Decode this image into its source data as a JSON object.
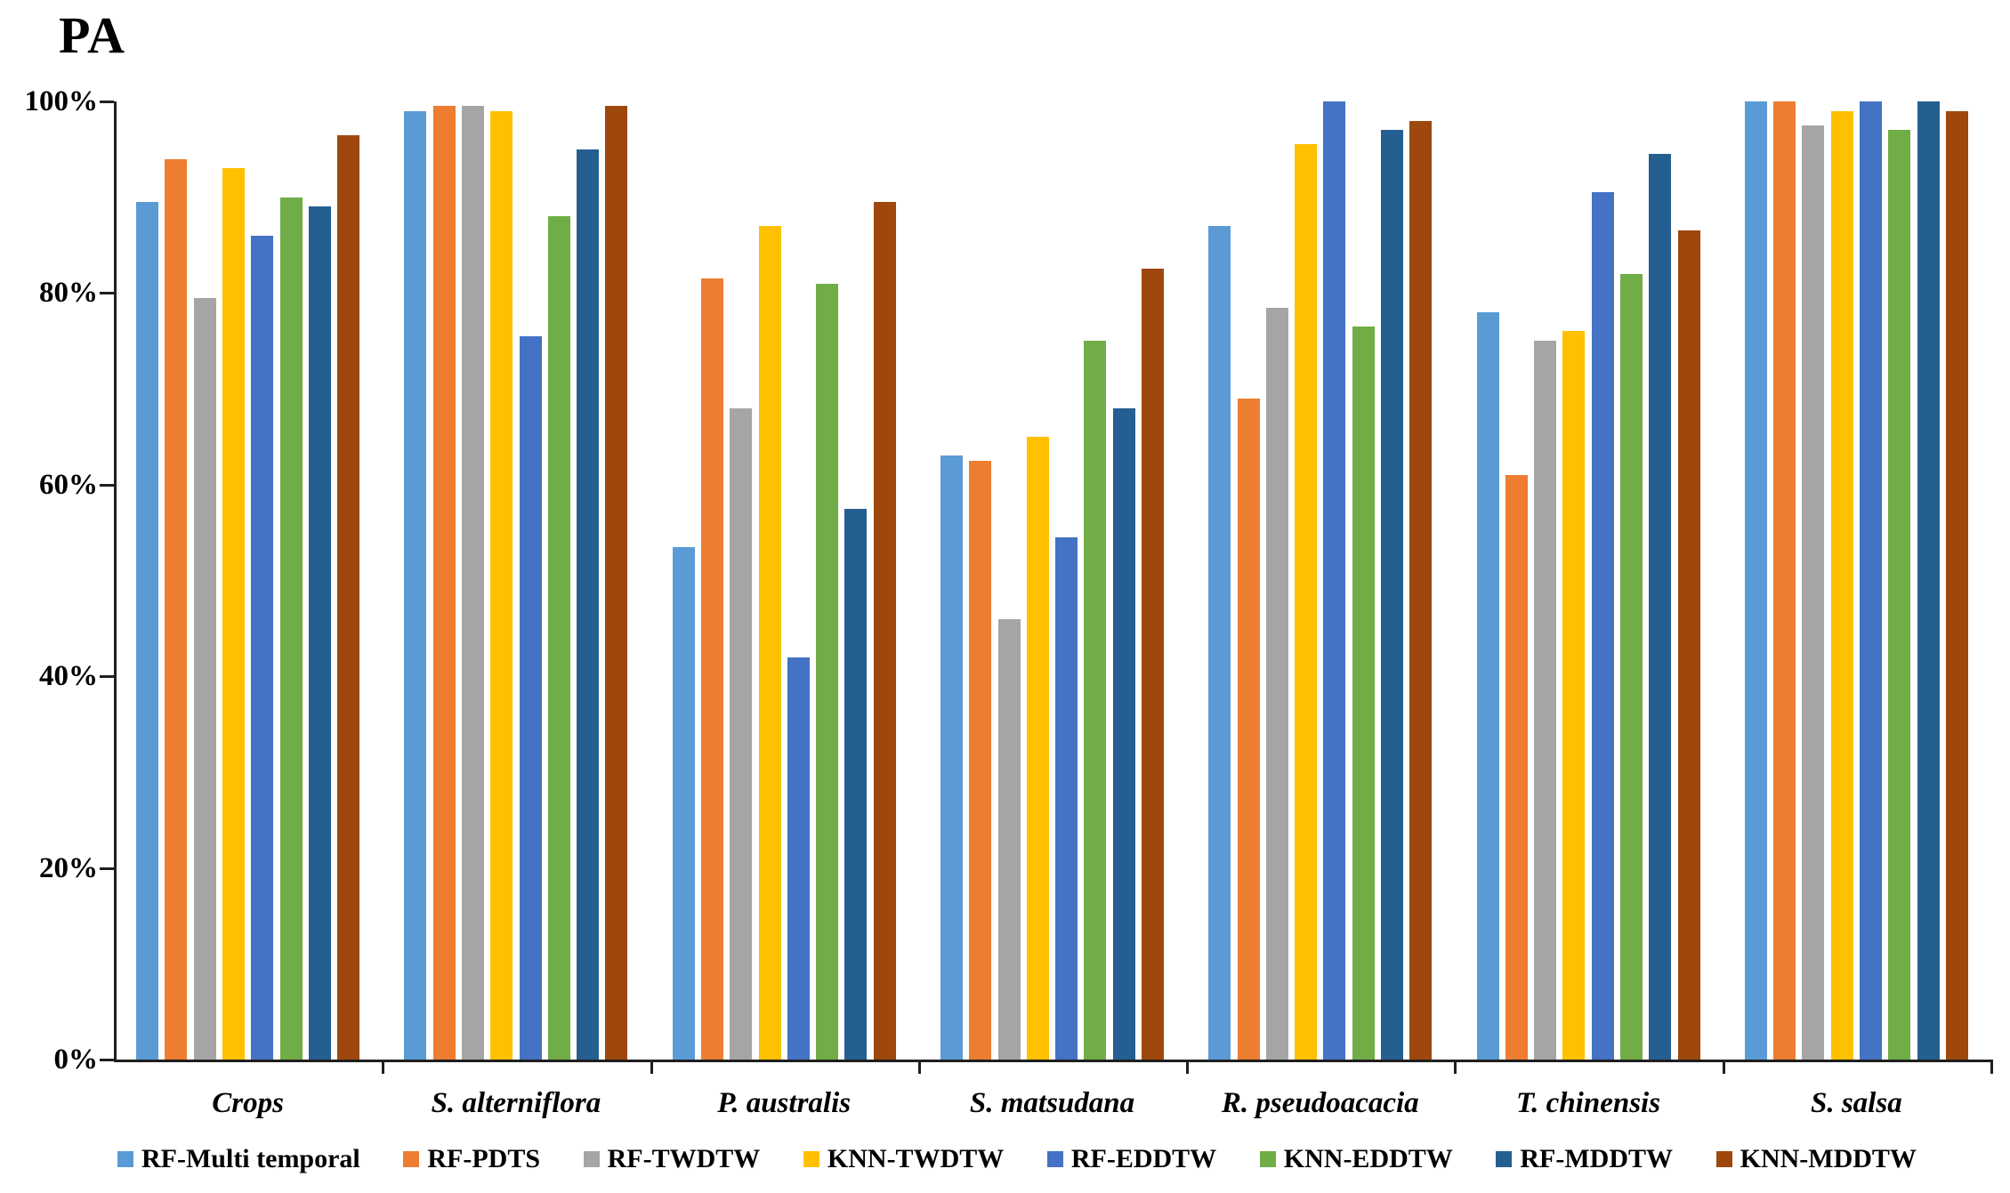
{
  "title": "PA",
  "chart_data": {
    "type": "bar",
    "title": "PA",
    "xlabel": "",
    "ylabel": "",
    "ylim": [
      0,
      100
    ],
    "y_tick_labels": [
      "100%",
      "80%",
      "60%",
      "40%",
      "20%",
      "0%"
    ],
    "grid": false,
    "legend_position": "bottom",
    "categories": [
      "Crops",
      "S. alterniflora",
      "P. australis",
      "S. matsudana",
      "R. pseudoacacia",
      "T. chinensis",
      "S. salsa"
    ],
    "series": [
      {
        "name": "RF-Multi temporal",
        "color": "#5B9BD5",
        "values": [
          89.5,
          99,
          53.5,
          63,
          87,
          78,
          100
        ]
      },
      {
        "name": "RF-PDTS",
        "color": "#ED7D31",
        "values": [
          94,
          99.5,
          81.5,
          62.5,
          69,
          61,
          100
        ]
      },
      {
        "name": "RF-TWDTW",
        "color": "#A5A5A5",
        "values": [
          79.5,
          99.5,
          68,
          46,
          78.5,
          75,
          97.5
        ]
      },
      {
        "name": "KNN-TWDTW",
        "color": "#FFC000",
        "values": [
          93,
          99,
          87,
          65,
          95.5,
          76,
          99
        ]
      },
      {
        "name": "RF-EDDTW",
        "color": "#4472C4",
        "values": [
          86,
          75.5,
          42,
          54.5,
          100,
          90.5,
          100
        ]
      },
      {
        "name": "KNN-EDDTW",
        "color": "#70AD47",
        "values": [
          90,
          88,
          81,
          75,
          76.5,
          82,
          97
        ]
      },
      {
        "name": "RF-MDDTW",
        "color": "#255E91",
        "values": [
          89,
          95,
          57.5,
          68,
          97,
          94.5,
          100
        ]
      },
      {
        "name": "KNN-MDDTW",
        "color": "#9E480E",
        "values": [
          96.5,
          99.5,
          89.5,
          82.5,
          98,
          86.5,
          99
        ]
      }
    ]
  }
}
